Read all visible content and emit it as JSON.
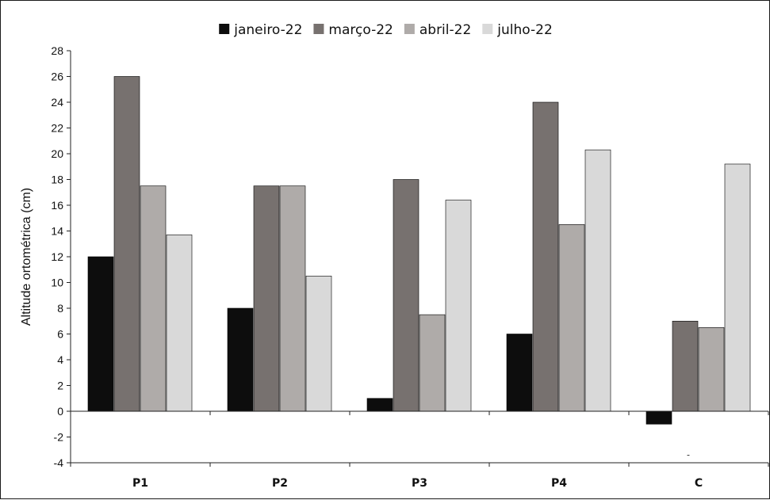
{
  "chart_data": {
    "type": "bar",
    "title": "",
    "xlabel": "",
    "ylabel": "Altitude ortométrica (cm)",
    "ylim": [
      -4,
      28
    ],
    "ytick_step": 2,
    "grid": false,
    "legend_position": "top-center",
    "categories": [
      "P1",
      "P2",
      "P3",
      "P4",
      "C"
    ],
    "series": [
      {
        "name": "janeiro-22",
        "color": "#0d0d0d",
        "values": [
          12,
          8,
          1,
          6,
          -1
        ]
      },
      {
        "name": "março-22",
        "color": "#77716f",
        "values": [
          26,
          17.5,
          18,
          24,
          7
        ]
      },
      {
        "name": "abril-22",
        "color": "#afaba9",
        "values": [
          17.5,
          17.5,
          7.5,
          14.5,
          6.5
        ]
      },
      {
        "name": "julho-22",
        "color": "#d9d9d9",
        "values": [
          13.7,
          10.5,
          16.4,
          20.3,
          19.2
        ]
      }
    ],
    "annotations": [
      {
        "text": "-",
        "category": "C",
        "y": -3.6
      }
    ]
  }
}
